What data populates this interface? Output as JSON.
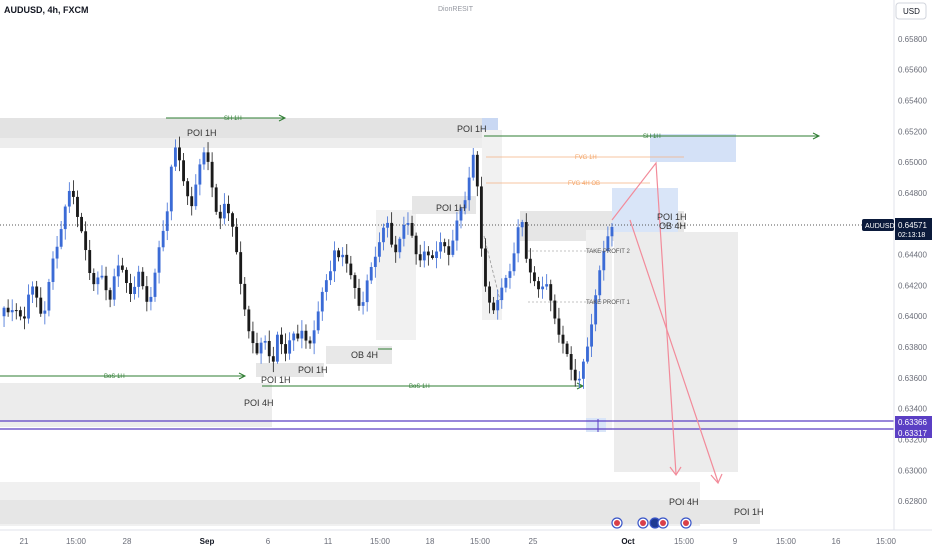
{
  "header": {
    "symbol_line": "AUDUSD, 4h, FXCM",
    "author": "DionRESIT",
    "currency_button": "USD"
  },
  "price_tag": {
    "symbol": "AUDUSD",
    "price": "0.64571",
    "countdown": "02:13:18"
  },
  "level_tags": {
    "upper": "0.63366",
    "lower": "0.63317"
  },
  "colors": {
    "bull": "#3b6bd6",
    "bear": "#1a1a1a",
    "structure_line": "#2e7d32",
    "level_purple": "#5b3fc4",
    "price_tag_bg": "#0b1a3b",
    "arrow": "#f28b9a",
    "fvg_label": "#f4a261"
  },
  "annotations": {
    "sh_1h_left": "SH 1H",
    "sh_1h_right": "SH 1H",
    "poi_1h_top_left": "POI 1H",
    "poi_1h_top_mid": "POI 1H",
    "poi_1h_mid": "POI 1H",
    "poi_1h_right": "POI 1H",
    "ob_4h_right": "OB 4H",
    "ob_4h_mid": "OB 4H",
    "poi_1h_low_left": "POI 1H",
    "poi_1h_low_mid": "POI 1H",
    "poi_4h_left": "POI 4H",
    "poi_4h_bottom": "POI 4H",
    "poi_1h_bottom": "POI 1H",
    "bos_1h_left": "BoS 1H",
    "bos_1h_mid": "BoS 1H",
    "fvg_1h": "FVG 1H",
    "fvg_4h_ob": "FVG 4H OB",
    "take_profit_2": "TAKE PROFIT 2",
    "take_profit_1": "TAKE PROFIT 1"
  },
  "chart_data": {
    "type": "candlestick",
    "symbol": "AUDUSD",
    "timeframe": "4h",
    "y_axis_labels": [
      "0.65800",
      "0.65600",
      "0.65400",
      "0.65200",
      "0.65000",
      "0.64800",
      "0.64600",
      "0.64400",
      "0.64200",
      "0.64000",
      "0.63800",
      "0.63600",
      "0.63400",
      "0.63200",
      "0.63000",
      "0.62800"
    ],
    "x_axis_labels": [
      "21",
      "15:00",
      "28",
      "Sep",
      "6",
      "11",
      "15:00",
      "18",
      "15:00",
      "25",
      "Oct",
      "15:00",
      "9",
      "15:00",
      "16",
      "15:00"
    ],
    "ylim": [
      0.6273,
      0.6587
    ],
    "current_price": 0.64571,
    "levels": [
      0.63366,
      0.63317
    ],
    "path": [
      0.64,
      0.6405,
      0.6398,
      0.641,
      0.6402,
      0.6395,
      0.6415,
      0.642,
      0.6405,
      0.6398,
      0.642,
      0.6435,
      0.6445,
      0.646,
      0.6475,
      0.6485,
      0.647,
      0.6455,
      0.644,
      0.6425,
      0.6418,
      0.643,
      0.6422,
      0.641,
      0.6425,
      0.6435,
      0.6428,
      0.6412,
      0.642,
      0.643,
      0.6415,
      0.6405,
      0.642,
      0.644,
      0.6455,
      0.647,
      0.65,
      0.651,
      0.6495,
      0.648,
      0.647,
      0.6488,
      0.65,
      0.6505,
      0.6495,
      0.647,
      0.6462,
      0.6475,
      0.6465,
      0.645,
      0.643,
      0.641,
      0.639,
      0.6382,
      0.6375,
      0.6385,
      0.6378,
      0.637,
      0.6388,
      0.638,
      0.6375,
      0.639,
      0.6382,
      0.6395,
      0.6385,
      0.638,
      0.6395,
      0.641,
      0.642,
      0.643,
      0.6445,
      0.6435,
      0.644,
      0.643,
      0.642,
      0.6408,
      0.6412,
      0.6425,
      0.6432,
      0.6445,
      0.6455,
      0.6462,
      0.6448,
      0.644,
      0.6452,
      0.6465,
      0.6455,
      0.644,
      0.6438,
      0.6445,
      0.6432,
      0.644,
      0.645,
      0.6445,
      0.644,
      0.6455,
      0.6465,
      0.647,
      0.649,
      0.6505,
      0.648,
      0.643,
      0.641,
      0.64,
      0.6412,
      0.642,
      0.6425,
      0.6432,
      0.645,
      0.6465,
      0.644,
      0.643,
      0.642,
      0.6415,
      0.6425,
      0.641,
      0.64,
      0.639,
      0.638,
      0.637,
      0.636,
      0.6355,
      0.637,
      0.6385,
      0.64,
      0.642,
      0.644,
      0.645,
      0.6457
    ]
  }
}
